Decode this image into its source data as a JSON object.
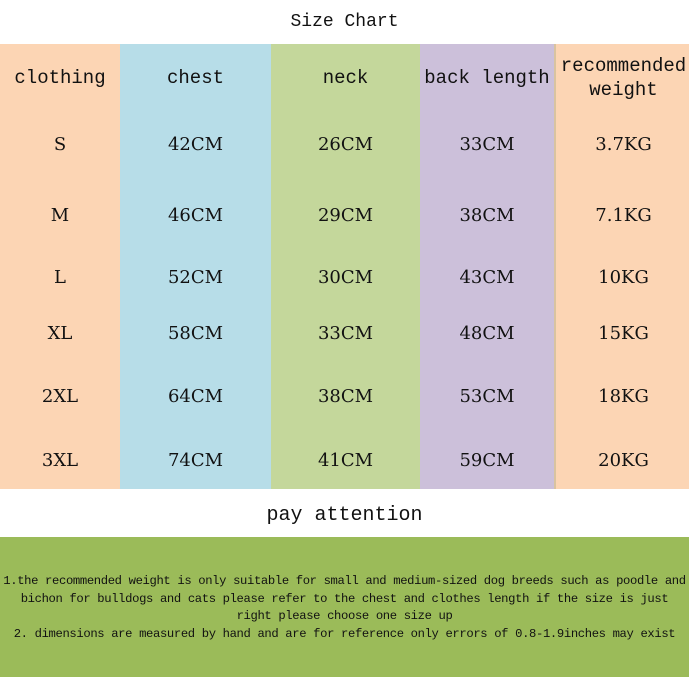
{
  "title": "Size  Chart",
  "colors": {
    "clothing": "#fcd5b4",
    "chest": "#b7dde8",
    "neck": "#c4d79b",
    "back_length": "#ccc0da",
    "weight": "#fcd5b4",
    "notes_bg": "#9bbb59"
  },
  "headers": [
    "clothing",
    "chest",
    "neck",
    "back length",
    "recommended weight"
  ],
  "rows": [
    [
      "S",
      "42CM",
      "26CM",
      "33CM",
      "3.7KG"
    ],
    [
      "M",
      "46CM",
      "29CM",
      "38CM",
      "7.1KG"
    ],
    [
      "L",
      "52CM",
      "30CM",
      "43CM",
      "10KG"
    ],
    [
      "XL",
      "58CM",
      "33CM",
      "48CM",
      "15KG"
    ],
    [
      "2XL",
      "64CM",
      "38CM",
      "53CM",
      "18KG"
    ],
    [
      "3XL",
      "74CM",
      "41CM",
      "59CM",
      "20KG"
    ]
  ],
  "attention_title": "pay attention",
  "notes": [
    "1.the recommended weight is only suitable for small and medium-sized dog breeds such as poodle and bichon for bulldogs and cats please refer to the chest and clothes length if the size is just right please choose one size up",
    "2. dimensions are measured by hand and are for reference only errors of 0.8-1.9inches may exist"
  ]
}
